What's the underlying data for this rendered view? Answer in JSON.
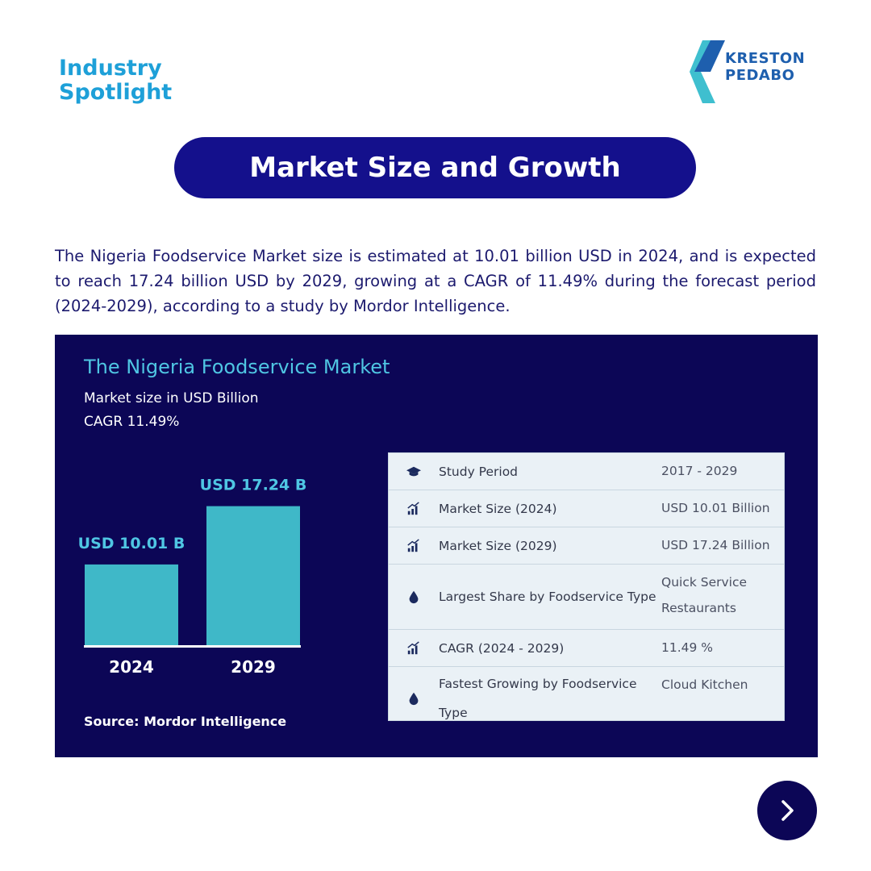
{
  "header": {
    "tag_line1": "Industry",
    "tag_line2": "Spotlight",
    "logo_line1": "KRESTON",
    "logo_line2": "PEDABO"
  },
  "title": "Market Size and Growth",
  "intro": "The Nigeria Foodservice Market size is estimated at 10.01 billion USD in 2024, and is expected to reach 17.24 billion USD by 2029, growing at a CAGR of 11.49% during the forecast period (2024-2029), according to a study by Mordor Intelligence.",
  "panel": {
    "title": "The Nigeria Foodservice Market",
    "subtitle1": "Market size in USD Billion",
    "subtitle2": "CAGR 11.49%",
    "source": "Source: Mordor Intelligence"
  },
  "chart_data": {
    "type": "bar",
    "title": "The Nigeria Foodservice Market",
    "subtitle": "Market size in USD Billion",
    "categories": [
      "2024",
      "2029"
    ],
    "values": [
      10.01,
      17.24
    ],
    "data_labels": [
      "USD 10.01 B",
      "USD 17.24 B"
    ],
    "ylabel": "",
    "xlabel": "",
    "ylim": [
      0,
      20
    ],
    "bar_color": "#3fb8c8",
    "label_color": "#4fc6e3",
    "grid": false
  },
  "stats": [
    {
      "icon": "graduation-cap-icon",
      "label": "Study Period",
      "value": "2017 - 2029"
    },
    {
      "icon": "bar-chart-icon",
      "label": "Market Size (2024)",
      "value": "USD 10.01 Billion"
    },
    {
      "icon": "bar-chart-icon",
      "label": "Market Size (2029)",
      "value": "USD 17.24 Billion"
    },
    {
      "icon": "drop-icon",
      "label": "Largest Share by Foodservice Type",
      "value": "Quick Service Restaurants"
    },
    {
      "icon": "bar-chart-icon",
      "label": "CAGR (2024 - 2029)",
      "value": "11.49 %"
    },
    {
      "icon": "drop-icon",
      "label": "Fastest Growing by Foodservice Type",
      "value": "Cloud Kitchen"
    }
  ],
  "colors": {
    "navy": "#0c0656",
    "pill": "#14108c",
    "accent_blue": "#1ea0d8",
    "teal": "#3fb8c8"
  },
  "nav": {
    "next_icon": "chevron-right-icon"
  }
}
